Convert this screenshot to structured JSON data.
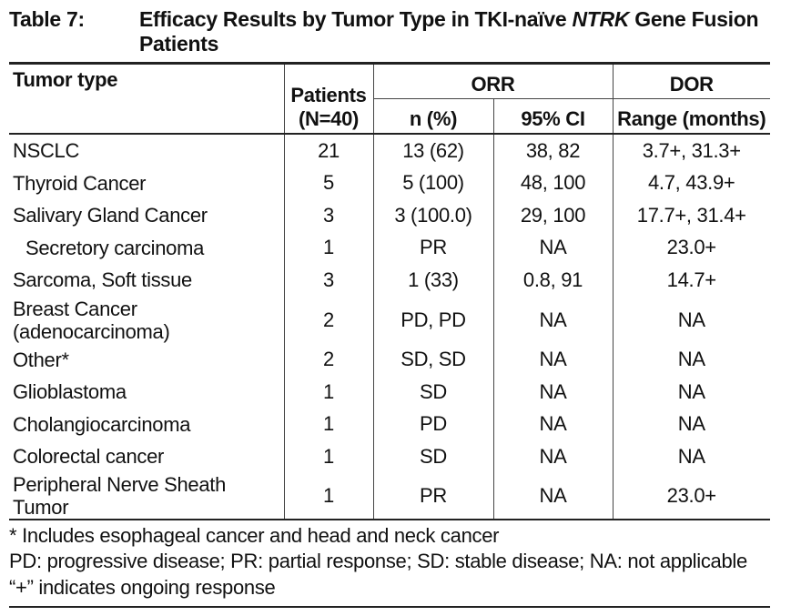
{
  "caption": {
    "label": "Table 7:",
    "title_part1": "Efficacy Results by Tumor Type in TKI-naïve ",
    "title_italic": "NTRK",
    "title_part2": " Gene Fusion Patients"
  },
  "header": {
    "tumor_type": "Tumor type",
    "patients_line1": "Patients",
    "patients_line2": "(N=40)",
    "orr": "ORR",
    "dor": "DOR",
    "n_pct": "n (%)",
    "ci": "95% CI",
    "range": "Range (months)"
  },
  "rows": [
    {
      "tumor": "NSCLC",
      "patients": "21",
      "n": "13 (62)",
      "ci": "38, 82",
      "range": "3.7+, 31.3+"
    },
    {
      "tumor": "Thyroid Cancer",
      "patients": "5",
      "n": "5 (100)",
      "ci": "48, 100",
      "range": "4.7, 43.9+"
    },
    {
      "tumor": "Salivary Gland Cancer",
      "patients": "3",
      "n": "3 (100.0)",
      "ci": "29, 100",
      "range": "17.7+, 31.4+"
    },
    {
      "tumor": "Secretory carcinoma",
      "patients": "1",
      "n": "PR",
      "ci": "NA",
      "range": "23.0+"
    },
    {
      "tumor": "Sarcoma, Soft tissue",
      "patients": "3",
      "n": "1 (33)",
      "ci": "0.8, 91",
      "range": "14.7+"
    },
    {
      "tumor_line1": "Breast Cancer",
      "tumor_line2": "(adenocarcinoma)",
      "patients": "2",
      "n": "PD, PD",
      "ci": "NA",
      "range": "NA"
    },
    {
      "tumor": "Other*",
      "patients": "2",
      "n": "SD, SD",
      "ci": "NA",
      "range": "NA"
    },
    {
      "tumor": "Glioblastoma",
      "patients": "1",
      "n": "SD",
      "ci": "NA",
      "range": "NA"
    },
    {
      "tumor": "Cholangiocarcinoma",
      "patients": "1",
      "n": "PD",
      "ci": "NA",
      "range": "NA"
    },
    {
      "tumor": "Colorectal cancer",
      "patients": "1",
      "n": "SD",
      "ci": "NA",
      "range": "NA"
    },
    {
      "tumor": "Peripheral Nerve Sheath Tumor",
      "patients": "1",
      "n": "PR",
      "ci": "NA",
      "range": "23.0+"
    }
  ],
  "footnotes": [
    "* Includes esophageal cancer and head and neck cancer",
    "PD: progressive disease; PR: partial response; SD: stable disease; NA: not applicable",
    "“+” indicates ongoing response"
  ]
}
